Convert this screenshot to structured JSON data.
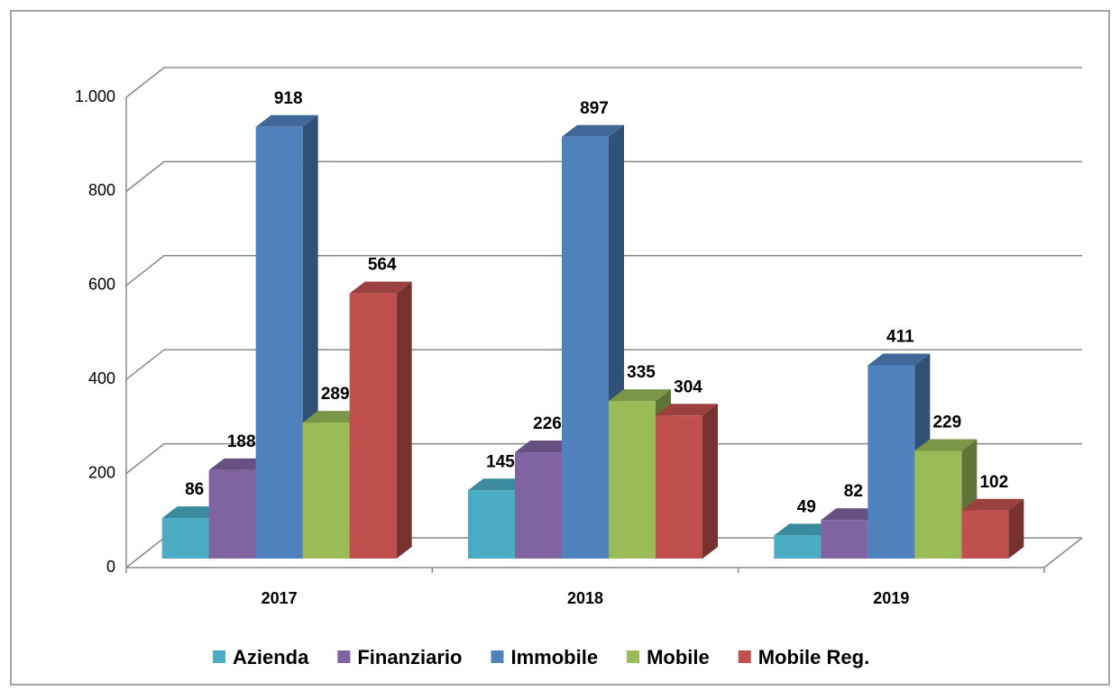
{
  "chart_data": {
    "type": "bar3d",
    "categories": [
      "2017",
      "2018",
      "2019"
    ],
    "series": [
      {
        "name": "Azienda",
        "color": "#4bacc6",
        "values": [
          86,
          145,
          49
        ]
      },
      {
        "name": "Finanziario",
        "color": "#8064a2",
        "values": [
          188,
          226,
          82
        ]
      },
      {
        "name": "Immobile",
        "color": "#4f81bd",
        "values": [
          918,
          897,
          411
        ]
      },
      {
        "name": "Mobile",
        "color": "#9bbb59",
        "values": [
          289,
          335,
          229
        ]
      },
      {
        "name": "Mobile Reg.",
        "color": "#c0504d",
        "values": [
          564,
          304,
          102
        ]
      }
    ],
    "ylim": [
      0,
      1000
    ],
    "yticks": [
      0,
      200,
      400,
      600,
      800,
      {
        "value": 1000,
        "label": "1.000"
      }
    ],
    "grid": true,
    "legend": "bottom"
  }
}
